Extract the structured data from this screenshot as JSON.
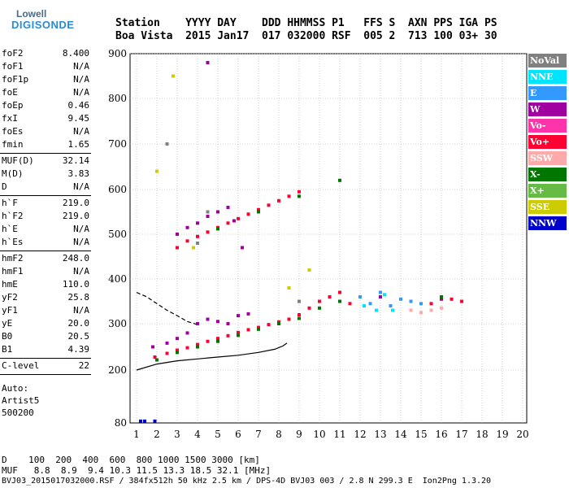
{
  "logo": {
    "top": "Lowell",
    "bottom": "DIGISONDE"
  },
  "header": {
    "labels_line": "Station    YYYY DAY    DDD HHMMSS P1   FFS S  AXN PPS IGA PS",
    "values_line": "Boa Vista  2015 Jan17  017 032000 RSF  005 2  713 100 03+ 30"
  },
  "params_group1": [
    {
      "label": "foF2",
      "value": "8.400"
    },
    {
      "label": "foF1",
      "value": "N/A"
    },
    {
      "label": "foF1p",
      "value": "N/A"
    },
    {
      "label": "foE",
      "value": "N/A"
    },
    {
      "label": "foEp",
      "value": "0.46"
    },
    {
      "label": "fxI",
      "value": "9.45"
    },
    {
      "label": "foEs",
      "value": "N/A"
    },
    {
      "label": "fmin",
      "value": "1.65"
    }
  ],
  "params_group2": [
    {
      "label": "MUF(D)",
      "value": "32.14"
    },
    {
      "label": "M(D)",
      "value": "3.83"
    },
    {
      "label": "D",
      "value": "N/A"
    }
  ],
  "params_group3": [
    {
      "label": "h`F",
      "value": "219.0"
    },
    {
      "label": "h`F2",
      "value": "219.0"
    },
    {
      "label": "h`E",
      "value": "N/A"
    },
    {
      "label": "h`Es",
      "value": "N/A"
    }
  ],
  "params_group4": [
    {
      "label": "hmF2",
      "value": "248.0"
    },
    {
      "label": "hmF1",
      "value": "N/A"
    },
    {
      "label": "hmE",
      "value": "110.0"
    },
    {
      "label": "yF2",
      "value": "25.8"
    },
    {
      "label": "yF1",
      "value": "N/A"
    },
    {
      "label": "yE",
      "value": "20.0"
    },
    {
      "label": "B0",
      "value": "20.5"
    },
    {
      "label": "B1",
      "value": "4.39"
    }
  ],
  "params_group5": [
    {
      "label": "C-level",
      "value": "22"
    }
  ],
  "autoscaling": [
    "Auto:",
    "Artist5",
    "500200"
  ],
  "footer": {
    "d_line": "D    100  200  400  600  800 1000 1500 3000 [km]",
    "muf_line": "MUF   8.8  8.9  9.4 10.3 11.5 13.3 18.5 32.1 [MHz]",
    "file_line": "BVJ03_2015017032000.RSF / 384fx512h 50 kHz 2.5 km / DPS-4D BVJ03 003 / 2.8 N 299.3 E  Ion2Png 1.3.20"
  },
  "legend": [
    {
      "label": "NoVal",
      "color": "#808080"
    },
    {
      "label": "NNE",
      "color": "#00e5ff"
    },
    {
      "label": "E",
      "color": "#3399ff"
    },
    {
      "label": "W",
      "color": "#a000a0"
    },
    {
      "label": "Vo-",
      "color": "#ff33aa"
    },
    {
      "label": "Vo+",
      "color": "#ff0033"
    },
    {
      "label": "SSW",
      "color": "#ffaaaa"
    },
    {
      "label": "X-",
      "color": "#007700"
    },
    {
      "label": "X+",
      "color": "#66bb44"
    },
    {
      "label": "SSE",
      "color": "#cccc00"
    },
    {
      "label": "NNW",
      "color": "#0000cc"
    }
  ],
  "chart_data": {
    "type": "scatter",
    "title": "",
    "xlabel": "",
    "ylabel": "",
    "xlim": [
      1,
      20
    ],
    "ylim": [
      80,
      900
    ],
    "x_ticks": [
      1,
      2,
      3,
      4,
      5,
      6,
      7,
      8,
      9,
      10,
      11,
      12,
      13,
      14,
      15,
      16,
      17,
      18,
      19,
      20
    ],
    "y_ticks": [
      80,
      200,
      300,
      400,
      500,
      600,
      700,
      800,
      900
    ],
    "grid": true,
    "legend_position": "right",
    "series": [
      {
        "name": "Vo+",
        "color": "#ff0033",
        "points": [
          [
            1.9,
            228
          ],
          [
            2.5,
            236
          ],
          [
            3.0,
            243
          ],
          [
            3.5,
            248
          ],
          [
            4.0,
            255
          ],
          [
            4.5,
            262
          ],
          [
            5.0,
            268
          ],
          [
            5.5,
            274
          ],
          [
            6.0,
            281
          ],
          [
            6.5,
            287
          ],
          [
            7.0,
            292
          ],
          [
            7.5,
            298
          ],
          [
            8.0,
            304
          ],
          [
            8.5,
            310
          ],
          [
            9.0,
            320
          ],
          [
            9.5,
            335
          ],
          [
            10.0,
            350
          ],
          [
            10.5,
            360
          ],
          [
            11.0,
            370
          ],
          [
            11.5,
            345
          ],
          [
            3.0,
            470
          ],
          [
            3.5,
            485
          ],
          [
            4.0,
            495
          ],
          [
            4.5,
            505
          ],
          [
            5.0,
            515
          ],
          [
            5.5,
            525
          ],
          [
            6.0,
            535
          ],
          [
            6.5,
            545
          ],
          [
            7.0,
            555
          ],
          [
            7.5,
            565
          ],
          [
            8.0,
            575
          ],
          [
            8.5,
            585
          ],
          [
            9.0,
            595
          ],
          [
            14.5,
            350
          ],
          [
            15.5,
            345
          ],
          [
            16.5,
            355
          ],
          [
            17.0,
            350
          ]
        ]
      },
      {
        "name": "W",
        "color": "#a000a0",
        "points": [
          [
            1.8,
            250
          ],
          [
            2.5,
            258
          ],
          [
            3.0,
            268
          ],
          [
            3.5,
            280
          ],
          [
            4.0,
            300
          ],
          [
            4.5,
            310
          ],
          [
            5.0,
            305
          ],
          [
            5.5,
            300
          ],
          [
            6.0,
            318
          ],
          [
            6.5,
            322
          ],
          [
            3.0,
            500
          ],
          [
            3.5,
            515
          ],
          [
            4.0,
            525
          ],
          [
            4.5,
            540
          ],
          [
            5.0,
            550
          ],
          [
            5.5,
            560
          ],
          [
            4.5,
            880
          ],
          [
            5.5,
            560
          ],
          [
            5.8,
            530
          ],
          [
            6.2,
            470
          ],
          [
            13.0,
            360
          ],
          [
            16.0,
            355
          ]
        ]
      },
      {
        "name": "X-",
        "color": "#007700",
        "points": [
          [
            2.0,
            222
          ],
          [
            3.0,
            238
          ],
          [
            4.0,
            250
          ],
          [
            5.0,
            262
          ],
          [
            6.0,
            275
          ],
          [
            7.0,
            288
          ],
          [
            8.0,
            300
          ],
          [
            9.0,
            312
          ],
          [
            10.0,
            335
          ],
          [
            11.0,
            350
          ],
          [
            5.0,
            512
          ],
          [
            7.0,
            550
          ],
          [
            9.0,
            585
          ],
          [
            11.0,
            620
          ],
          [
            16.0,
            360
          ]
        ]
      },
      {
        "name": "E",
        "color": "#3399ff",
        "points": [
          [
            12.0,
            360
          ],
          [
            12.5,
            345
          ],
          [
            13.0,
            370
          ],
          [
            13.5,
            340
          ],
          [
            14.0,
            355
          ],
          [
            14.5,
            350
          ],
          [
            15.0,
            345
          ]
        ]
      },
      {
        "name": "NNE",
        "color": "#00e5ff",
        "points": [
          [
            12.2,
            340
          ],
          [
            12.8,
            330
          ],
          [
            13.2,
            365
          ],
          [
            13.6,
            330
          ]
        ]
      },
      {
        "name": "SSW",
        "color": "#ffaaaa",
        "points": [
          [
            14.5,
            330
          ],
          [
            15.0,
            325
          ],
          [
            15.5,
            330
          ],
          [
            16.0,
            335
          ]
        ]
      },
      {
        "name": "SSE",
        "color": "#cccc00",
        "points": [
          [
            2.0,
            640
          ],
          [
            3.8,
            470
          ],
          [
            8.5,
            380
          ],
          [
            9.5,
            420
          ],
          [
            2.8,
            850
          ]
        ]
      },
      {
        "name": "NNW",
        "color": "#0000cc",
        "points": [
          [
            1.2,
            84
          ],
          [
            1.4,
            84
          ],
          [
            1.9,
            84
          ]
        ]
      },
      {
        "name": "NoVal",
        "color": "#808080",
        "points": [
          [
            2.5,
            700
          ],
          [
            4.5,
            550
          ],
          [
            4.0,
            480
          ],
          [
            9.0,
            350
          ]
        ]
      }
    ],
    "profile_solid": [
      [
        1.0,
        200
      ],
      [
        2.0,
        213
      ],
      [
        3.0,
        220
      ],
      [
        4.0,
        224
      ],
      [
        5.0,
        228
      ],
      [
        6.0,
        232
      ],
      [
        7.0,
        238
      ],
      [
        7.8,
        245
      ],
      [
        8.2,
        252
      ],
      [
        8.4,
        258
      ]
    ],
    "profile_dashed": [
      [
        1.0,
        370
      ],
      [
        1.5,
        360
      ],
      [
        2.0,
        345
      ],
      [
        2.5,
        330
      ],
      [
        3.0,
        318
      ],
      [
        3.5,
        305
      ],
      [
        4.0,
        298
      ]
    ]
  }
}
